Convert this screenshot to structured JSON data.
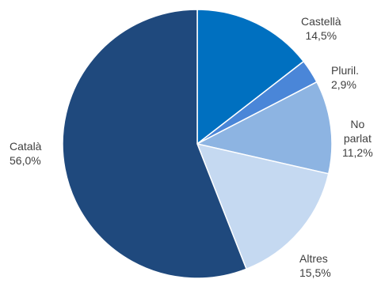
{
  "chart_data": {
    "type": "pie",
    "title": "",
    "unit": "%",
    "slices": [
      {
        "label": "Castellà",
        "display": "14,5%",
        "value": 14.5,
        "color": "#0070C0"
      },
      {
        "label": "Pluril.",
        "display": "2,9%",
        "value": 2.9,
        "color": "#4A86D8"
      },
      {
        "label": "No parlat",
        "label_lines": [
          "No",
          "parlat"
        ],
        "display": "11,2%",
        "value": 11.2,
        "color": "#8DB4E2"
      },
      {
        "label": "Altres",
        "display": "15,5%",
        "value": 15.5,
        "color": "#C5D9F1"
      },
      {
        "label": "Català",
        "display": "56,0%",
        "value": 56.0,
        "color": "#1F497D"
      }
    ]
  }
}
